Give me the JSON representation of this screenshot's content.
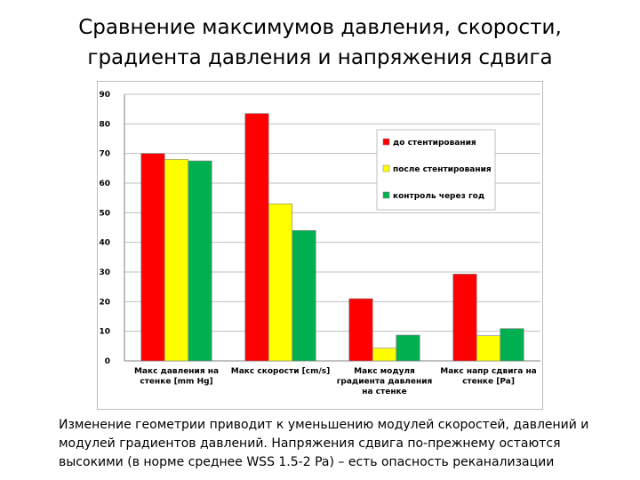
{
  "slide": {
    "title_line1": "Сравнение максимумов давления, скорости,",
    "title_line2": "градиента давления и напряжения сдвига",
    "caption": "Изменение геометрии приводит к уменьшению модулей скоростей, давлений и модулей градиентов давлений. Напряжения сдвига по-прежнему остаются высокими (в норме среднее WSS 1.5-2 Pa) – есть опасность реканализации"
  },
  "chart_data": {
    "type": "bar",
    "title": "",
    "xlabel": "",
    "ylabel": "",
    "ylim": [
      0,
      90
    ],
    "yticks": [
      0,
      10,
      20,
      30,
      40,
      50,
      60,
      70,
      80,
      90
    ],
    "grid": true,
    "legend_position": "top-right",
    "categories": [
      [
        "Макс давления на",
        "стенке [mm Hg]"
      ],
      [
        "Макс скорости [cm/s]"
      ],
      [
        "Макс модуля",
        "градиента давления",
        "на стенке"
      ],
      [
        "Макс напр сдвига на",
        "стенке [Pa]"
      ]
    ],
    "series": [
      {
        "name": "до стентирования",
        "color": "#ff0000",
        "values": [
          70,
          83.5,
          21,
          29.3
        ]
      },
      {
        "name": "после стентирования",
        "color": "#ffff00",
        "values": [
          68,
          53,
          4.3,
          8.5
        ]
      },
      {
        "name": "контроль через год",
        "color": "#00b050",
        "values": [
          67.5,
          44,
          8.7,
          10.9
        ]
      }
    ]
  }
}
